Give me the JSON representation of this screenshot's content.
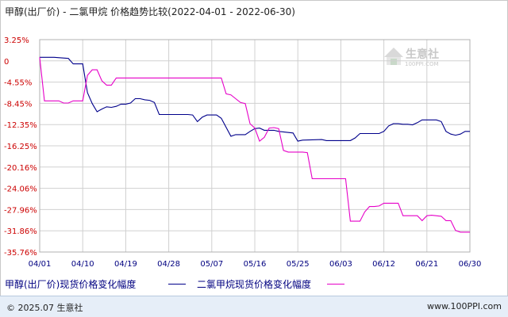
{
  "header": {
    "title": "甲醇(出厂价) - 二氯甲烷 价格趋势比较(2022-04-01 - 2022-06-30)"
  },
  "watermark": {
    "name": "生意社",
    "url": "100PPI.COM"
  },
  "footer": {
    "copyright": "© 2025.07 生意社",
    "site": "www.100PPI.com"
  },
  "colors": {
    "series_methanol": "#00008b",
    "series_dcm": "#e600c8",
    "grid": "#d0d0d0",
    "tick_text": "#cc0000",
    "x_tick_text": "#000080"
  },
  "chart_data": {
    "type": "line",
    "y_ticks": [
      "3.25%",
      "0",
      "-4.55%",
      "-8.45%",
      "-12.35%",
      "-16.25%",
      "-20.16%",
      "-24.06%",
      "-27.96%",
      "-31.86%",
      "-35.76%"
    ],
    "x_ticks": [
      "04/01",
      "04/10",
      "04/19",
      "04/28",
      "05/07",
      "05/16",
      "05/25",
      "06/03",
      "06/12",
      "06/21",
      "06/30"
    ],
    "ylim": [
      -35.76,
      3.25
    ],
    "xlim": [
      0,
      90
    ],
    "grid": true,
    "legend_position": "bottom",
    "series": [
      {
        "name": "甲醇(出厂价)现货价格变化幅度",
        "color": "#00008b",
        "points": [
          [
            0,
            0
          ],
          [
            3,
            0
          ],
          [
            6,
            -0.2
          ],
          [
            7,
            -1.2
          ],
          [
            9,
            -1.2
          ],
          [
            10,
            -6.5
          ],
          [
            11,
            -8.5
          ],
          [
            12,
            -10
          ],
          [
            13,
            -9.5
          ],
          [
            14,
            -9.1
          ],
          [
            15,
            -9.2
          ],
          [
            16,
            -9.0
          ],
          [
            17,
            -8.6
          ],
          [
            18,
            -8.6
          ],
          [
            19,
            -8.4
          ],
          [
            20,
            -7.6
          ],
          [
            21,
            -7.6
          ],
          [
            22,
            -7.8
          ],
          [
            23,
            -7.9
          ],
          [
            24,
            -8.3
          ],
          [
            25,
            -10.5
          ],
          [
            28,
            -10.5
          ],
          [
            31,
            -10.5
          ],
          [
            32,
            -10.6
          ],
          [
            33,
            -11.8
          ],
          [
            34,
            -11.0
          ],
          [
            35,
            -10.6
          ],
          [
            36,
            -10.6
          ],
          [
            37,
            -10.6
          ],
          [
            38,
            -11.2
          ],
          [
            40,
            -14.5
          ],
          [
            41,
            -14.2
          ],
          [
            43,
            -14.2
          ],
          [
            44,
            -13.6
          ],
          [
            45,
            -13.1
          ],
          [
            46,
            -13.0
          ],
          [
            47,
            -13.4
          ],
          [
            49,
            -13.4
          ],
          [
            50,
            -13.6
          ],
          [
            53,
            -13.9
          ],
          [
            54,
            -15.4
          ],
          [
            55,
            -15.2
          ],
          [
            59,
            -15.1
          ],
          [
            60,
            -15.3
          ],
          [
            65,
            -15.3
          ],
          [
            66,
            -14.8
          ],
          [
            67,
            -14.0
          ],
          [
            71,
            -14.0
          ],
          [
            72,
            -13.6
          ],
          [
            73,
            -12.6
          ],
          [
            74,
            -12.2
          ],
          [
            75,
            -12.2
          ],
          [
            76,
            -12.3
          ],
          [
            77,
            -12.3
          ],
          [
            78,
            -12.4
          ],
          [
            79,
            -12.0
          ],
          [
            80,
            -11.5
          ],
          [
            83,
            -11.5
          ],
          [
            84,
            -11.8
          ],
          [
            85,
            -13.6
          ],
          [
            86,
            -14.1
          ],
          [
            87,
            -14.3
          ],
          [
            88,
            -14.1
          ],
          [
            89,
            -13.6
          ],
          [
            90,
            -13.6
          ]
        ]
      },
      {
        "name": "二氯甲烷现货价格变化幅度",
        "color": "#e600c8",
        "points": [
          [
            0,
            0
          ],
          [
            1,
            -8.0
          ],
          [
            4,
            -8.0
          ],
          [
            5,
            -8.4
          ],
          [
            6,
            -8.4
          ],
          [
            7,
            -8.0
          ],
          [
            9,
            -8.0
          ],
          [
            10,
            -3.3
          ],
          [
            11,
            -2.3
          ],
          [
            12,
            -2.3
          ],
          [
            13,
            -4.3
          ],
          [
            14,
            -5.1
          ],
          [
            15,
            -5.1
          ],
          [
            16,
            -3.8
          ],
          [
            23,
            -3.8
          ],
          [
            38,
            -3.8
          ],
          [
            39,
            -6.7
          ],
          [
            40,
            -6.9
          ],
          [
            41,
            -7.6
          ],
          [
            42,
            -8.3
          ],
          [
            43,
            -8.5
          ],
          [
            44,
            -12.2
          ],
          [
            45,
            -13.0
          ],
          [
            46,
            -15.4
          ],
          [
            47,
            -14.7
          ],
          [
            48,
            -13.0
          ],
          [
            49,
            -12.9
          ],
          [
            50,
            -13.1
          ],
          [
            51,
            -17.1
          ],
          [
            52,
            -17.4
          ],
          [
            55,
            -17.4
          ],
          [
            56,
            -17.5
          ],
          [
            57,
            -22.3
          ],
          [
            58,
            -22.3
          ],
          [
            64,
            -22.3
          ],
          [
            65,
            -30.1
          ],
          [
            67,
            -30.1
          ],
          [
            68,
            -28.4
          ],
          [
            69,
            -27.4
          ],
          [
            70,
            -27.4
          ],
          [
            71,
            -27.3
          ],
          [
            72,
            -26.8
          ],
          [
            75,
            -26.8
          ],
          [
            76,
            -29.1
          ],
          [
            79,
            -29.1
          ],
          [
            80,
            -30.0
          ],
          [
            81,
            -29.1
          ],
          [
            82,
            -29.0
          ],
          [
            84,
            -29.2
          ],
          [
            85,
            -30.0
          ],
          [
            86,
            -30.0
          ],
          [
            87,
            -31.8
          ],
          [
            88,
            -32.1
          ],
          [
            90,
            -32.1
          ]
        ]
      }
    ]
  }
}
